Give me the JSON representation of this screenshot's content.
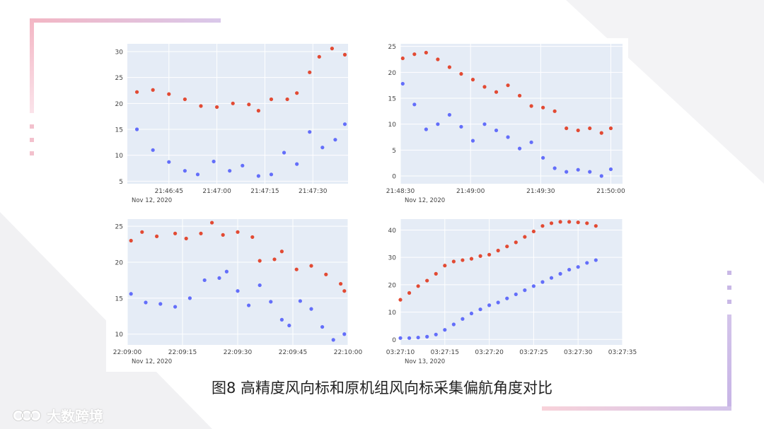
{
  "caption": "图8  高精度风向标和原机组风向标采集偏航角度对比",
  "logo": {
    "text": "大数跨境",
    "icon": "brand-logo-icon"
  },
  "colors": {
    "series_red": "#e24a33",
    "series_blue": "#636efa",
    "plot_bg": "#e5ecf6",
    "grid": "#ffffff"
  },
  "chart_data": [
    {
      "type": "scatter",
      "x_type": "time",
      "date_label": "Nov 12, 2020",
      "x_range": [
        "21:46:32",
        "21:47:41"
      ],
      "x_ticks": [
        "21:46:45",
        "21:47:00",
        "21:47:15",
        "21:47:30"
      ],
      "y_ticks": [
        5,
        10,
        15,
        20,
        25,
        30
      ],
      "ylim": [
        4.5,
        31.5
      ],
      "grid": true,
      "series": [
        {
          "color": "#e24a33",
          "points": [
            [
              "21:46:35",
              22.2
            ],
            [
              "21:46:40",
              22.6
            ],
            [
              "21:46:45",
              21.8
            ],
            [
              "21:46:50",
              20.8
            ],
            [
              "21:46:55",
              19.5
            ],
            [
              "21:47:00",
              19.3
            ],
            [
              "21:47:05",
              20.0
            ],
            [
              "21:47:10",
              19.8
            ],
            [
              "21:47:13",
              18.6
            ],
            [
              "21:47:17",
              20.8
            ],
            [
              "21:47:22",
              20.8
            ],
            [
              "21:47:25",
              22.0
            ],
            [
              "21:47:29",
              26.0
            ],
            [
              "21:47:32",
              29.0
            ],
            [
              "21:47:36",
              30.6
            ],
            [
              "21:47:40",
              29.4
            ]
          ]
        },
        {
          "color": "#636efa",
          "points": [
            [
              "21:46:35",
              15.0
            ],
            [
              "21:46:40",
              11.0
            ],
            [
              "21:46:45",
              8.7
            ],
            [
              "21:46:50",
              7.0
            ],
            [
              "21:46:54",
              6.3
            ],
            [
              "21:46:59",
              8.8
            ],
            [
              "21:47:04",
              7.0
            ],
            [
              "21:47:08",
              8.0
            ],
            [
              "21:47:13",
              6.0
            ],
            [
              "21:47:17",
              6.3
            ],
            [
              "21:47:21",
              10.5
            ],
            [
              "21:47:25",
              8.3
            ],
            [
              "21:47:29",
              14.5
            ],
            [
              "21:47:33",
              11.5
            ],
            [
              "21:47:37",
              13.0
            ],
            [
              "21:47:40",
              16.0
            ]
          ]
        }
      ]
    },
    {
      "type": "scatter",
      "x_type": "time",
      "date_label": "Nov 12, 2020",
      "x_range": [
        "21:48:30",
        "21:50:05"
      ],
      "x_ticks": [
        "21:48:30",
        "21:49:00",
        "21:49:30",
        "21:50:00"
      ],
      "y_ticks": [
        0,
        5,
        10,
        15,
        20,
        25
      ],
      "ylim": [
        -1.5,
        25.5
      ],
      "grid": true,
      "series": [
        {
          "color": "#e24a33",
          "points": [
            [
              "21:48:31",
              22.7
            ],
            [
              "21:48:36",
              23.5
            ],
            [
              "21:48:41",
              23.8
            ],
            [
              "21:48:46",
              22.5
            ],
            [
              "21:48:51",
              21.0
            ],
            [
              "21:48:56",
              19.7
            ],
            [
              "21:49:01",
              18.6
            ],
            [
              "21:49:06",
              17.2
            ],
            [
              "21:49:11",
              16.2
            ],
            [
              "21:49:16",
              17.5
            ],
            [
              "21:49:21",
              15.5
            ],
            [
              "21:49:26",
              13.5
            ],
            [
              "21:49:31",
              13.2
            ],
            [
              "21:49:36",
              12.5
            ],
            [
              "21:49:41",
              9.2
            ],
            [
              "21:49:46",
              8.8
            ],
            [
              "21:49:51",
              9.2
            ],
            [
              "21:49:56",
              8.3
            ],
            [
              "21:50:00",
              9.2
            ]
          ]
        },
        {
          "color": "#636efa",
          "points": [
            [
              "21:48:31",
              17.8
            ],
            [
              "21:48:36",
              13.8
            ],
            [
              "21:48:41",
              9.0
            ],
            [
              "21:48:46",
              10.0
            ],
            [
              "21:48:51",
              11.8
            ],
            [
              "21:48:56",
              9.5
            ],
            [
              "21:49:01",
              6.8
            ],
            [
              "21:49:06",
              10.0
            ],
            [
              "21:49:11",
              8.8
            ],
            [
              "21:49:16",
              7.5
            ],
            [
              "21:49:21",
              5.3
            ],
            [
              "21:49:26",
              6.5
            ],
            [
              "21:49:31",
              3.5
            ],
            [
              "21:49:36",
              1.5
            ],
            [
              "21:49:41",
              0.8
            ],
            [
              "21:49:46",
              1.2
            ],
            [
              "21:49:51",
              0.8
            ],
            [
              "21:49:56",
              0.0
            ],
            [
              "21:50:00",
              1.3
            ]
          ]
        }
      ]
    },
    {
      "type": "scatter",
      "x_type": "time",
      "date_label": "Nov 12, 2020",
      "x_range": [
        "22:09:00",
        "22:10:00"
      ],
      "x_ticks": [
        "22:09:00",
        "22:09:15",
        "22:09:30",
        "22:09:45",
        "22:10:00"
      ],
      "y_ticks": [
        10,
        15,
        20,
        25
      ],
      "ylim": [
        8.5,
        26
      ],
      "grid": true,
      "series": [
        {
          "color": "#e24a33",
          "points": [
            [
              "22:09:01",
              23.0
            ],
            [
              "22:09:04",
              24.2
            ],
            [
              "22:09:08",
              23.6
            ],
            [
              "22:09:13",
              24.0
            ],
            [
              "22:09:16",
              23.3
            ],
            [
              "22:09:20",
              24.0
            ],
            [
              "22:09:23",
              25.5
            ],
            [
              "22:09:26",
              23.8
            ],
            [
              "22:09:30",
              24.2
            ],
            [
              "22:09:34",
              23.5
            ],
            [
              "22:09:36",
              20.2
            ],
            [
              "22:09:40",
              20.4
            ],
            [
              "22:09:42",
              21.5
            ],
            [
              "22:09:46",
              19.0
            ],
            [
              "22:09:50",
              19.5
            ],
            [
              "22:09:54",
              18.3
            ],
            [
              "22:09:58",
              17.0
            ],
            [
              "22:09:59",
              16.0
            ]
          ]
        },
        {
          "color": "#636efa",
          "points": [
            [
              "22:09:01",
              15.6
            ],
            [
              "22:09:05",
              14.4
            ],
            [
              "22:09:09",
              14.2
            ],
            [
              "22:09:13",
              13.8
            ],
            [
              "22:09:17",
              15.0
            ],
            [
              "22:09:21",
              17.5
            ],
            [
              "22:09:25",
              17.8
            ],
            [
              "22:09:27",
              18.7
            ],
            [
              "22:09:30",
              16.0
            ],
            [
              "22:09:33",
              14.0
            ],
            [
              "22:09:36",
              16.8
            ],
            [
              "22:09:39",
              14.5
            ],
            [
              "22:09:42",
              12.0
            ],
            [
              "22:09:44",
              11.2
            ],
            [
              "22:09:47",
              14.6
            ],
            [
              "22:09:50",
              13.5
            ],
            [
              "22:09:53",
              11.0
            ],
            [
              "22:09:56",
              9.2
            ],
            [
              "22:09:59",
              10.0
            ]
          ]
        }
      ]
    },
    {
      "type": "scatter",
      "x_type": "time",
      "date_label": "Nov 13, 2020",
      "x_range": [
        "03:27:10",
        "03:27:35"
      ],
      "x_ticks": [
        "03:27:10",
        "03:27:15",
        "03:27:20",
        "03:27:25",
        "03:27:30",
        "03:27:35"
      ],
      "y_ticks": [
        0,
        10,
        20,
        30,
        40
      ],
      "ylim": [
        -2,
        44
      ],
      "grid": true,
      "series": [
        {
          "color": "#e24a33",
          "points": [
            [
              "03:27:10",
              14.5
            ],
            [
              "03:27:11",
              17.0
            ],
            [
              "03:27:12",
              19.5
            ],
            [
              "03:27:13",
              21.5
            ],
            [
              "03:27:14",
              24.0
            ],
            [
              "03:27:15",
              27.0
            ],
            [
              "03:27:16",
              28.5
            ],
            [
              "03:27:17",
              29.0
            ],
            [
              "03:27:18",
              29.5
            ],
            [
              "03:27:19",
              30.5
            ],
            [
              "03:27:20",
              31.0
            ],
            [
              "03:27:21",
              32.5
            ],
            [
              "03:27:22",
              34.0
            ],
            [
              "03:27:23",
              35.5
            ],
            [
              "03:27:24",
              37.5
            ],
            [
              "03:27:25",
              39.5
            ],
            [
              "03:27:26",
              41.5
            ],
            [
              "03:27:27",
              42.5
            ],
            [
              "03:27:28",
              43.0
            ],
            [
              "03:27:29",
              43.0
            ],
            [
              "03:27:30",
              42.8
            ],
            [
              "03:27:31",
              42.5
            ],
            [
              "03:27:32",
              41.5
            ]
          ]
        },
        {
          "color": "#636efa",
          "points": [
            [
              "03:27:10",
              0.5
            ],
            [
              "03:27:11",
              0.5
            ],
            [
              "03:27:12",
              0.7
            ],
            [
              "03:27:13",
              1.0
            ],
            [
              "03:27:14",
              1.8
            ],
            [
              "03:27:15",
              3.5
            ],
            [
              "03:27:16",
              5.5
            ],
            [
              "03:27:17",
              7.5
            ],
            [
              "03:27:18",
              9.5
            ],
            [
              "03:27:19",
              11.0
            ],
            [
              "03:27:20",
              12.5
            ],
            [
              "03:27:21",
              13.5
            ],
            [
              "03:27:22",
              15.0
            ],
            [
              "03:27:23",
              16.5
            ],
            [
              "03:27:24",
              18.0
            ],
            [
              "03:27:25",
              19.5
            ],
            [
              "03:27:26",
              21.0
            ],
            [
              "03:27:27",
              22.5
            ],
            [
              "03:27:28",
              24.0
            ],
            [
              "03:27:29",
              25.5
            ],
            [
              "03:27:30",
              26.5
            ],
            [
              "03:27:31",
              28.0
            ],
            [
              "03:27:32",
              29.0
            ]
          ]
        }
      ]
    }
  ]
}
